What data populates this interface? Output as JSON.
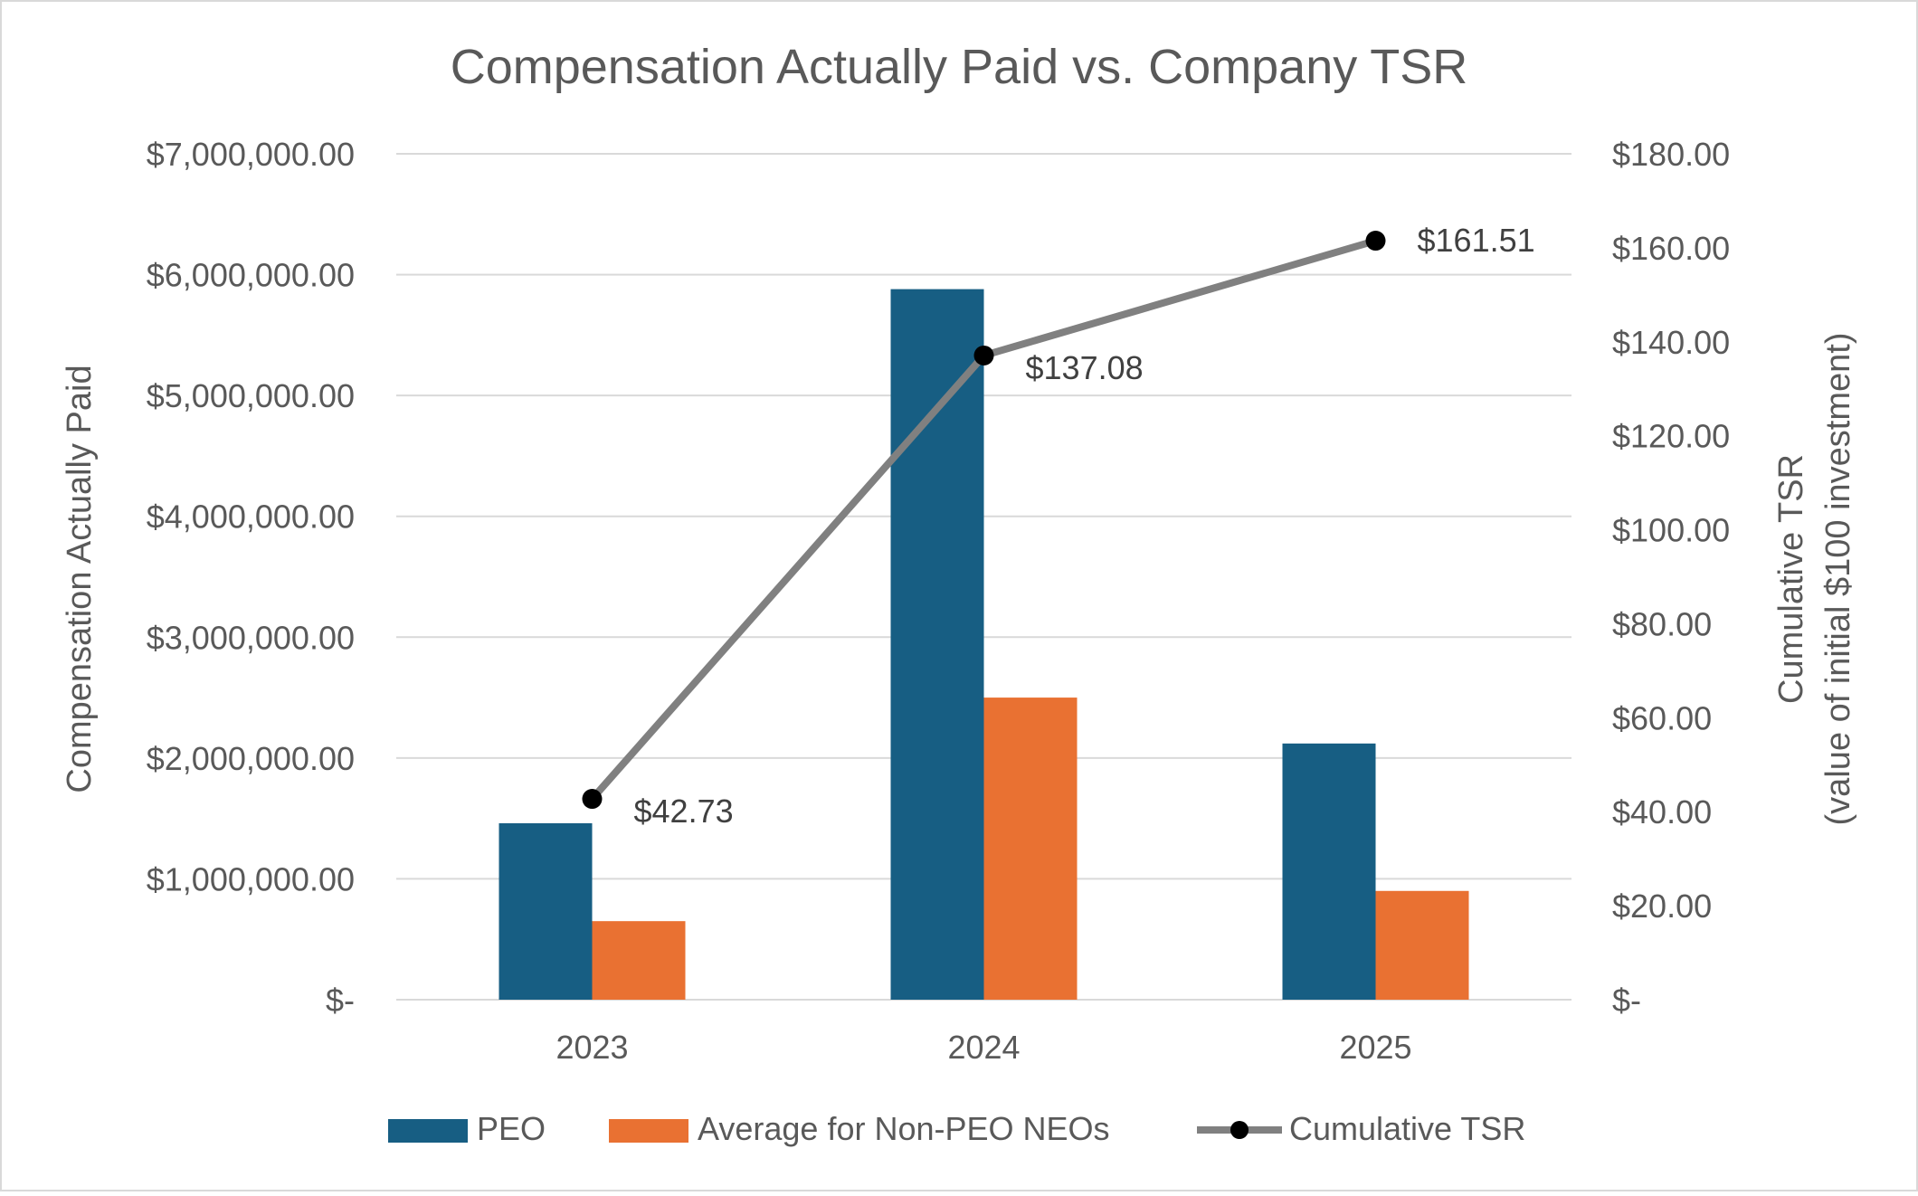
{
  "chart_data": {
    "type": "bar",
    "title": "Compensation Actually Paid vs. Company TSR",
    "categories": [
      "2023",
      "2024",
      "2025"
    ],
    "series": [
      {
        "name": "PEO",
        "type": "bar",
        "axis": "left",
        "values": [
          1460000,
          5880000,
          2120000
        ]
      },
      {
        "name": "Average for Non-PEO NEOs",
        "type": "bar",
        "axis": "left",
        "values": [
          650000,
          2500000,
          900000
        ]
      },
      {
        "name": "Cumulative TSR",
        "type": "line",
        "axis": "right",
        "values": [
          42.73,
          137.08,
          161.51
        ],
        "data_labels": [
          "$42.73",
          "$137.08",
          "$161.51"
        ]
      }
    ],
    "ylabel": "Compensation Actually Paid",
    "y2label_line1": "Cumulative TSR",
    "y2label_line2": "(value of initial $100 investment)",
    "ylim": [
      0,
      7000000
    ],
    "y2lim": [
      0,
      180
    ],
    "yticks": [
      0,
      1000000,
      2000000,
      3000000,
      4000000,
      5000000,
      6000000,
      7000000
    ],
    "ytick_labels": [
      "$-",
      "$1,000,000.00",
      "$2,000,000.00",
      "$3,000,000.00",
      "$4,000,000.00",
      "$5,000,000.00",
      "$6,000,000.00",
      "$7,000,000.00"
    ],
    "y2ticks": [
      0,
      20,
      40,
      60,
      80,
      100,
      120,
      140,
      160,
      180
    ],
    "y2tick_labels": [
      "$-",
      "$20.00",
      "$40.00",
      "$60.00",
      "$80.00",
      "$100.00",
      "$120.00",
      "$140.00",
      "$160.00",
      "$180.00"
    ],
    "grid": true,
    "legend_position": "bottom",
    "colors": {
      "PEO": "#175e83",
      "Average for Non-PEO NEOs": "#e97132",
      "Cumulative TSR": "#808080",
      "marker": "#000000",
      "grid": "#d9d9d9",
      "text": "#595959",
      "title": "#595959",
      "label_text": "#404040",
      "border": "#d9d9d9"
    }
  }
}
